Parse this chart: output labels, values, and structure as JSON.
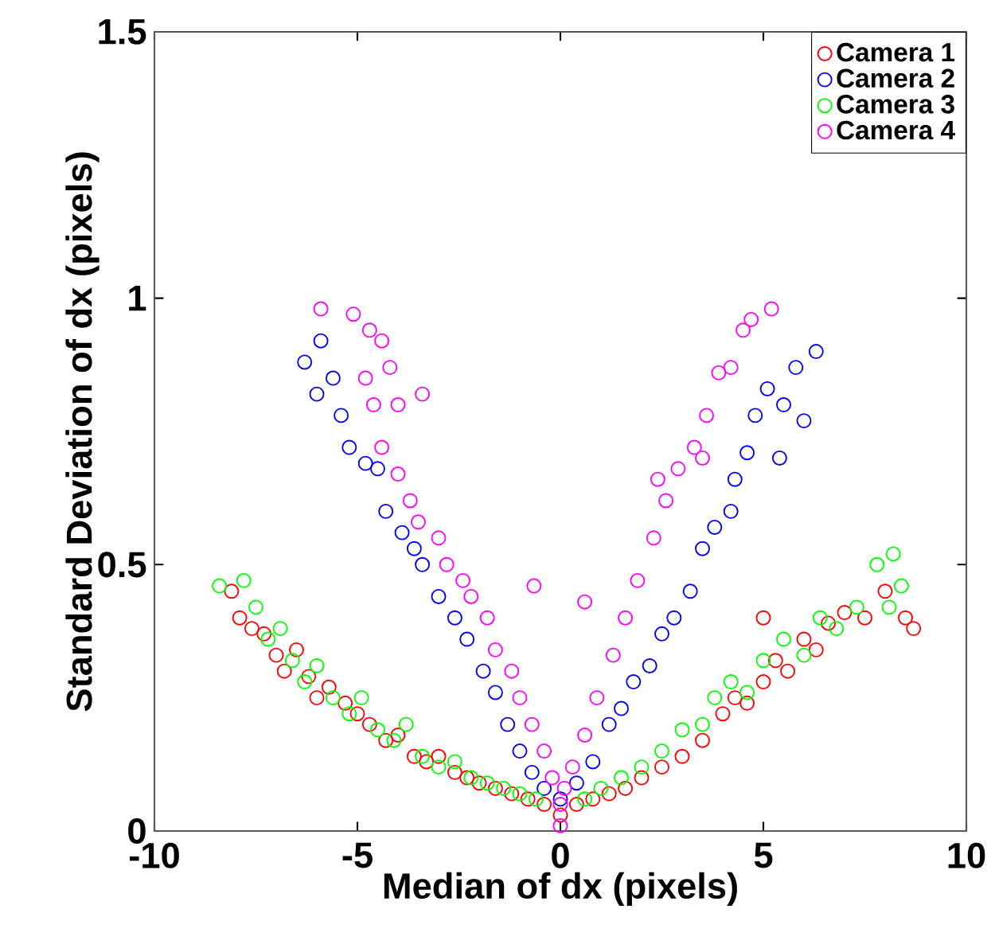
{
  "chart_data": {
    "type": "scatter",
    "xlabel": "Median of dx (pixels)",
    "ylabel": "Standard Deviation of dx (pixels)",
    "xlim": [
      -10,
      10
    ],
    "ylim": [
      0,
      1.5
    ],
    "xticks": [
      -10,
      -5,
      0,
      5,
      10
    ],
    "yticks": [
      0,
      0.5,
      1,
      1.5
    ],
    "grid": false,
    "legend": "top right",
    "marker": "circle",
    "series": [
      {
        "name": "Camera 1",
        "color": "#ff0000",
        "x": [
          -8.1,
          -7.9,
          -7.6,
          -7.3,
          -7.0,
          -6.8,
          -6.5,
          -6.2,
          -6.0,
          -5.7,
          -5.3,
          -5.0,
          -4.7,
          -4.3,
          -4.0,
          -3.6,
          -3.3,
          -3.0,
          -2.6,
          -2.3,
          -2.0,
          -1.6,
          -1.2,
          -0.8,
          -0.4,
          0,
          0.4,
          0.8,
          1.2,
          1.6,
          2.0,
          2.5,
          3.0,
          3.5,
          4.0,
          4.3,
          4.6,
          5.0,
          5.3,
          5.6,
          6.0,
          6.3,
          6.6,
          7.0,
          7.5,
          8.0,
          8.5,
          8.7,
          5.0
        ],
        "values": [
          0.45,
          0.4,
          0.38,
          0.37,
          0.33,
          0.3,
          0.34,
          0.29,
          0.25,
          0.27,
          0.24,
          0.22,
          0.2,
          0.17,
          0.18,
          0.14,
          0.13,
          0.14,
          0.11,
          0.1,
          0.09,
          0.08,
          0.07,
          0.06,
          0.05,
          0.03,
          0.05,
          0.06,
          0.07,
          0.08,
          0.1,
          0.12,
          0.14,
          0.17,
          0.22,
          0.25,
          0.24,
          0.28,
          0.32,
          0.3,
          0.36,
          0.34,
          0.39,
          0.41,
          0.4,
          0.45,
          0.4,
          0.38,
          0.4
        ]
      },
      {
        "name": "Camera 2",
        "color": "#0000ff",
        "x": [
          -6.3,
          -5.9,
          -6.0,
          -5.6,
          -5.4,
          -5.2,
          -4.8,
          -4.5,
          -4.3,
          -3.9,
          -3.6,
          -3.4,
          -3.0,
          -2.6,
          -2.3,
          -1.9,
          -1.6,
          -1.3,
          -1.0,
          -0.7,
          -0.4,
          0,
          0.4,
          0.8,
          1.2,
          1.5,
          1.8,
          2.2,
          2.5,
          2.8,
          3.2,
          3.5,
          3.8,
          4.2,
          4.3,
          4.6,
          4.8,
          5.1,
          5.5,
          5.8,
          6.3,
          6.0,
          5.4
        ],
        "values": [
          0.88,
          0.92,
          0.82,
          0.85,
          0.78,
          0.72,
          0.69,
          0.68,
          0.6,
          0.56,
          0.53,
          0.5,
          0.44,
          0.4,
          0.36,
          0.3,
          0.26,
          0.2,
          0.15,
          0.11,
          0.08,
          0.06,
          0.09,
          0.13,
          0.2,
          0.23,
          0.28,
          0.31,
          0.37,
          0.4,
          0.45,
          0.53,
          0.57,
          0.6,
          0.66,
          0.71,
          0.78,
          0.83,
          0.8,
          0.87,
          0.9,
          0.77,
          0.7
        ]
      },
      {
        "name": "Camera 3",
        "color": "#00ff00",
        "x": [
          -8.4,
          -7.8,
          -7.5,
          -7.2,
          -6.9,
          -6.6,
          -6.3,
          -6.0,
          -5.6,
          -5.2,
          -4.9,
          -4.5,
          -4.1,
          -3.8,
          -3.4,
          -3.0,
          -2.6,
          -2.2,
          -1.8,
          -1.4,
          -1.0,
          -0.6,
          0.6,
          1.0,
          1.5,
          2.0,
          2.5,
          3.0,
          3.5,
          3.8,
          4.2,
          4.6,
          5.0,
          5.5,
          6.0,
          6.4,
          6.8,
          7.3,
          7.8,
          8.2,
          8.4,
          8.1
        ],
        "values": [
          0.46,
          0.47,
          0.42,
          0.36,
          0.38,
          0.32,
          0.28,
          0.31,
          0.25,
          0.22,
          0.25,
          0.19,
          0.17,
          0.2,
          0.14,
          0.12,
          0.13,
          0.1,
          0.09,
          0.08,
          0.07,
          0.06,
          0.06,
          0.08,
          0.1,
          0.12,
          0.15,
          0.19,
          0.2,
          0.25,
          0.28,
          0.26,
          0.32,
          0.36,
          0.33,
          0.4,
          0.38,
          0.42,
          0.5,
          0.52,
          0.46,
          0.42
        ]
      },
      {
        "name": "Camera 4",
        "color": "#ff00ff",
        "x": [
          -5.9,
          -5.1,
          -4.7,
          -4.4,
          -4.8,
          -4.2,
          -4.6,
          -4.0,
          -3.4,
          -4.4,
          -4.0,
          -3.7,
          -3.5,
          -3.0,
          -2.8,
          -2.4,
          -2.2,
          -1.8,
          -1.6,
          -1.2,
          -0.65,
          -1.0,
          -0.7,
          -0.4,
          -0.2,
          0,
          0,
          0.1,
          0.3,
          0.6,
          0.9,
          1.3,
          0.6,
          1.6,
          1.9,
          2.3,
          2.6,
          2.9,
          3.3,
          3.6,
          3.9,
          4.2,
          4.5,
          4.7,
          5.2,
          3.5,
          2.4
        ],
        "values": [
          0.98,
          0.97,
          0.94,
          0.92,
          0.85,
          0.87,
          0.8,
          0.8,
          0.82,
          0.72,
          0.67,
          0.62,
          0.58,
          0.55,
          0.5,
          0.47,
          0.44,
          0.4,
          0.34,
          0.3,
          0.46,
          0.25,
          0.2,
          0.15,
          0.1,
          0.05,
          0.01,
          0.08,
          0.12,
          0.18,
          0.25,
          0.33,
          0.43,
          0.4,
          0.47,
          0.55,
          0.62,
          0.68,
          0.72,
          0.78,
          0.86,
          0.87,
          0.94,
          0.96,
          0.98,
          0.7,
          0.66
        ]
      }
    ]
  }
}
